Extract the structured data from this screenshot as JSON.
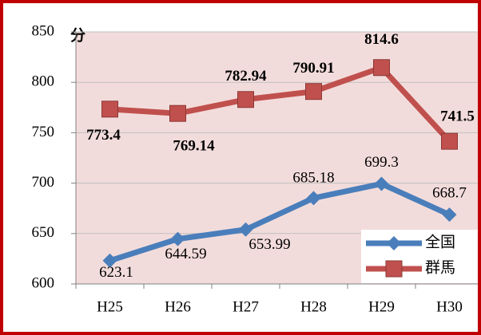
{
  "chart_data": {
    "type": "line",
    "y_label": "分",
    "categories": [
      "H25",
      "H26",
      "H27",
      "H28",
      "H29",
      "H30"
    ],
    "series": [
      {
        "name": "全国",
        "color": "#4a7ebb",
        "marker": "diamond",
        "values": [
          623.1,
          644.59,
          653.99,
          685.18,
          699.3,
          668.7
        ]
      },
      {
        "name": "群馬",
        "color": "#c0504d",
        "marker": "square",
        "values": [
          773.4,
          769.14,
          782.94,
          790.91,
          814.6,
          741.5
        ]
      }
    ],
    "ylim": [
      600,
      850
    ],
    "yticks": [
      600,
      650,
      700,
      750,
      800,
      850
    ],
    "grid": true,
    "legend": "lower right"
  }
}
